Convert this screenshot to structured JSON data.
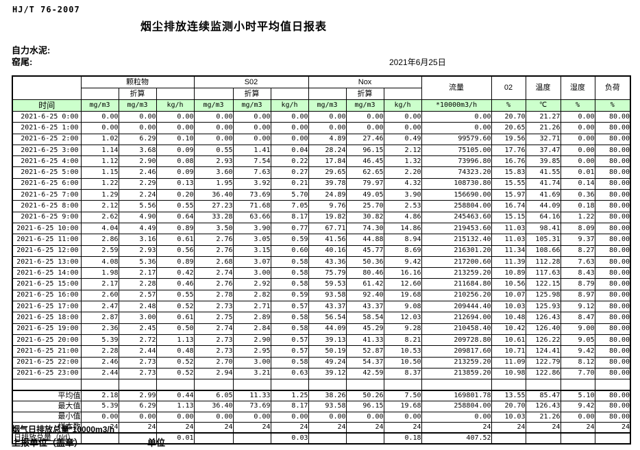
{
  "header": {
    "standard_no": "HJ/T  76-2007",
    "title": "烟尘排放连续监测小时平均值日报表",
    "company": "自力水泥:",
    "location": "窑尾:",
    "date": "2021年6月25日"
  },
  "table": {
    "header_bg": "#ccffcc",
    "time_label": "时间",
    "converted_label": "折算",
    "groups": {
      "pm": "颗粒物",
      "so2": "S02",
      "nox": "Nox",
      "flow": "流量",
      "o2": "02",
      "temp": "温度",
      "humidity": "湿度",
      "load": "负荷"
    },
    "units": [
      "mg/m3",
      "mg/m3",
      "kg/h",
      "mg/m3",
      "mg/m3",
      "kg/h",
      "mg/m3",
      "mg/m3",
      "kg/h",
      "*10000m3/h",
      "%",
      "℃",
      "%",
      "%"
    ],
    "rows": [
      {
        "time": "2021-6-25 0:00",
        "values": [
          "0.00",
          "0.00",
          "0.00",
          "0.00",
          "0.00",
          "0.00",
          "0.00",
          "0.00",
          "0.00",
          "0.00",
          "20.70",
          "21.27",
          "0.00",
          "80.00"
        ]
      },
      {
        "time": "2021-6-25 1:00",
        "values": [
          "0.00",
          "0.00",
          "0.00",
          "0.00",
          "0.00",
          "0.00",
          "0.00",
          "0.00",
          "0.00",
          "0.00",
          "20.65",
          "21.26",
          "0.00",
          "80.00"
        ]
      },
      {
        "time": "2021-6-25 2:00",
        "values": [
          "1.02",
          "6.29",
          "0.10",
          "0.00",
          "0.00",
          "0.00",
          "4.89",
          "27.46",
          "0.49",
          "99579.60",
          "19.56",
          "32.71",
          "0.00",
          "80.00"
        ]
      },
      {
        "time": "2021-6-25 3:00",
        "values": [
          "1.14",
          "3.68",
          "0.09",
          "0.55",
          "1.41",
          "0.04",
          "28.24",
          "96.15",
          "2.12",
          "75105.00",
          "17.76",
          "37.47",
          "0.00",
          "80.00"
        ]
      },
      {
        "time": "2021-6-25 4:00",
        "values": [
          "1.12",
          "2.90",
          "0.08",
          "2.93",
          "7.54",
          "0.22",
          "17.84",
          "46.45",
          "1.32",
          "73996.80",
          "16.76",
          "39.85",
          "0.00",
          "80.00"
        ]
      },
      {
        "time": "2021-6-25 5:00",
        "values": [
          "1.15",
          "2.46",
          "0.09",
          "3.60",
          "7.63",
          "0.27",
          "29.65",
          "62.65",
          "2.20",
          "74323.20",
          "15.83",
          "41.55",
          "0.01",
          "80.00"
        ]
      },
      {
        "time": "2021-6-25 6:00",
        "values": [
          "1.22",
          "2.29",
          "0.13",
          "1.95",
          "3.92",
          "0.21",
          "39.78",
          "79.97",
          "4.32",
          "108730.80",
          "15.55",
          "41.74",
          "0.14",
          "80.00"
        ]
      },
      {
        "time": "2021-6-25 7:00",
        "values": [
          "1.29",
          "2.24",
          "0.20",
          "36.40",
          "73.69",
          "5.70",
          "24.89",
          "49.05",
          "3.90",
          "156690.00",
          "15.97",
          "41.69",
          "0.36",
          "80.00"
        ]
      },
      {
        "time": "2021-6-25 8:00",
        "values": [
          "2.12",
          "5.56",
          "0.55",
          "27.23",
          "71.68",
          "7.05",
          "9.76",
          "25.70",
          "2.53",
          "258804.00",
          "16.74",
          "44.09",
          "0.18",
          "80.00"
        ]
      },
      {
        "time": "2021-6-25 9:00",
        "values": [
          "2.62",
          "4.90",
          "0.64",
          "33.28",
          "63.66",
          "8.17",
          "19.82",
          "30.82",
          "4.86",
          "245463.60",
          "15.15",
          "64.16",
          "1.22",
          "80.00"
        ]
      },
      {
        "time": "2021-6-25 10:00",
        "values": [
          "4.04",
          "4.49",
          "0.89",
          "3.50",
          "3.90",
          "0.77",
          "67.71",
          "74.30",
          "14.86",
          "219453.60",
          "11.03",
          "98.41",
          "8.09",
          "80.00"
        ]
      },
      {
        "time": "2021-6-25 11:00",
        "values": [
          "2.86",
          "3.16",
          "0.61",
          "2.76",
          "3.05",
          "0.59",
          "41.56",
          "44.88",
          "8.94",
          "215132.40",
          "11.03",
          "105.31",
          "9.37",
          "80.00"
        ]
      },
      {
        "time": "2021-6-25 12:00",
        "values": [
          "2.59",
          "2.93",
          "0.56",
          "2.76",
          "3.15",
          "0.60",
          "40.16",
          "45.77",
          "8.69",
          "216301.20",
          "11.34",
          "108.66",
          "8.27",
          "80.00"
        ]
      },
      {
        "time": "2021-6-25 13:00",
        "values": [
          "4.08",
          "5.36",
          "0.89",
          "2.68",
          "3.07",
          "0.58",
          "43.36",
          "50.36",
          "9.42",
          "217200.60",
          "11.39",
          "112.28",
          "7.63",
          "80.00"
        ]
      },
      {
        "time": "2021-6-25 14:00",
        "values": [
          "1.98",
          "2.17",
          "0.42",
          "2.74",
          "3.00",
          "0.58",
          "75.79",
          "80.46",
          "16.16",
          "213259.20",
          "10.89",
          "117.63",
          "8.43",
          "80.00"
        ]
      },
      {
        "time": "2021-6-25 15:00",
        "values": [
          "2.17",
          "2.28",
          "0.46",
          "2.76",
          "2.92",
          "0.58",
          "59.53",
          "61.42",
          "12.60",
          "211684.80",
          "10.56",
          "122.15",
          "8.79",
          "80.00"
        ]
      },
      {
        "time": "2021-6-25 16:00",
        "values": [
          "2.60",
          "2.57",
          "0.55",
          "2.78",
          "2.82",
          "0.59",
          "93.58",
          "92.40",
          "19.68",
          "210256.20",
          "10.07",
          "125.98",
          "8.97",
          "80.00"
        ]
      },
      {
        "time": "2021-6-25 17:00",
        "values": [
          "2.47",
          "2.48",
          "0.52",
          "2.73",
          "2.71",
          "0.57",
          "43.37",
          "43.37",
          "9.08",
          "209444.40",
          "10.03",
          "125.93",
          "9.12",
          "80.00"
        ]
      },
      {
        "time": "2021-6-25 18:00",
        "values": [
          "2.87",
          "3.00",
          "0.61",
          "2.75",
          "2.89",
          "0.58",
          "56.54",
          "58.54",
          "12.03",
          "212694.00",
          "10.48",
          "126.43",
          "8.47",
          "80.00"
        ]
      },
      {
        "time": "2021-6-25 19:00",
        "values": [
          "2.36",
          "2.45",
          "0.50",
          "2.74",
          "2.84",
          "0.58",
          "44.09",
          "45.29",
          "9.28",
          "210458.40",
          "10.42",
          "126.40",
          "9.00",
          "80.00"
        ]
      },
      {
        "time": "2021-6-25 20:00",
        "values": [
          "5.39",
          "2.72",
          "1.13",
          "2.73",
          "2.90",
          "0.57",
          "39.13",
          "41.33",
          "8.21",
          "209728.80",
          "10.61",
          "126.22",
          "9.05",
          "80.00"
        ]
      },
      {
        "time": "2021-6-25 21:00",
        "values": [
          "2.28",
          "2.44",
          "0.48",
          "2.73",
          "2.95",
          "0.57",
          "50.19",
          "52.87",
          "10.53",
          "209817.60",
          "10.71",
          "124.41",
          "9.42",
          "80.00"
        ]
      },
      {
        "time": "2021-6-25 22:00",
        "values": [
          "2.46",
          "2.73",
          "0.52",
          "2.70",
          "3.00",
          "0.58",
          "49.24",
          "54.37",
          "10.50",
          "213259.20",
          "11.09",
          "122.79",
          "8.12",
          "80.00"
        ]
      },
      {
        "time": "2021-6-25 23:00",
        "values": [
          "2.44",
          "2.73",
          "0.52",
          "2.94",
          "3.21",
          "0.63",
          "39.12",
          "42.59",
          "8.37",
          "213859.20",
          "10.98",
          "122.86",
          "7.70",
          "80.00"
        ]
      }
    ],
    "summary": [
      {
        "label": "平均值",
        "values": [
          "2.18",
          "2.99",
          "0.44",
          "6.05",
          "11.33",
          "1.25",
          "38.26",
          "50.26",
          "7.50",
          "169801.78",
          "13.55",
          "85.47",
          "5.10",
          "80.00"
        ]
      },
      {
        "label": "最大值",
        "values": [
          "5.39",
          "6.29",
          "1.13",
          "36.40",
          "73.69",
          "8.17",
          "93.58",
          "96.15",
          "19.68",
          "258804.00",
          "20.70",
          "126.43",
          "9.42",
          "80.00"
        ]
      },
      {
        "label": "最小值",
        "values": [
          "0.00",
          "0.00",
          "0.00",
          "0.00",
          "0.00",
          "0.00",
          "0.00",
          "0.00",
          "0.00",
          "0.00",
          "10.03",
          "21.26",
          "0.00",
          "80.00"
        ]
      },
      {
        "label": "样本数",
        "values": [
          "24",
          "24",
          "24",
          "24",
          "24",
          "24",
          "24",
          "24",
          "24",
          "24",
          "24",
          "24",
          "24",
          "24"
        ]
      },
      {
        "label": "日排放总量（t/d）",
        "values": [
          "",
          "",
          "0.01",
          "",
          "",
          "0.03",
          "",
          "",
          "0.18",
          "407.52",
          "",
          "",
          "",
          ""
        ]
      }
    ]
  },
  "footer": {
    "flow_note": "烟气日排放总量*10000m3/h",
    "report_unit": "上报单位（盖章）",
    "unit_label": "单位"
  }
}
